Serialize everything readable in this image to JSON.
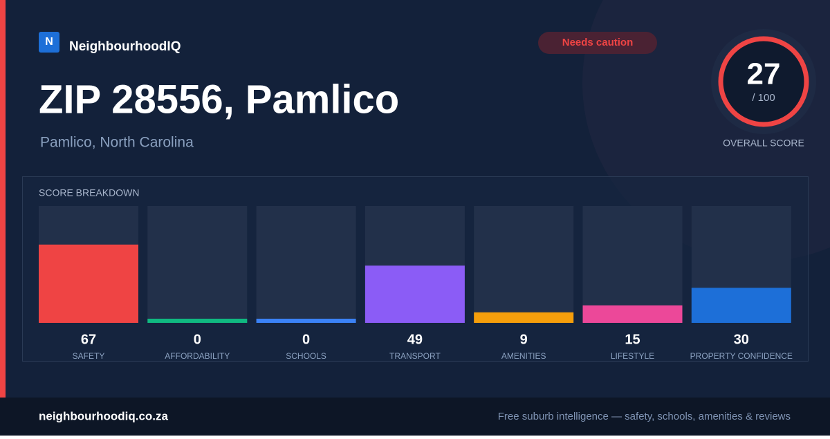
{
  "brand": "NeighbourhoodIQ",
  "logo_letter": "N",
  "badge": "Needs caution",
  "title": "ZIP 28556, Pamlico",
  "subtitle": "Pamlico, North Carolina",
  "score": {
    "value": 27,
    "max_label": "/ 100",
    "label": "OVERALL SCORE",
    "color": "#ef4444"
  },
  "chart_data": {
    "type": "bar",
    "title": "SCORE BREAKDOWN",
    "categories": [
      "SAFETY",
      "AFFORDABILITY",
      "SCHOOLS",
      "TRANSPORT",
      "AMENITIES",
      "LIFESTYLE",
      "PROPERTY CONFIDENCE"
    ],
    "values": [
      67,
      0,
      0,
      49,
      9,
      15,
      30
    ],
    "colors": [
      "#ef4444",
      "#10b981",
      "#3b82f6",
      "#8b5cf6",
      "#f59e0b",
      "#ec4899",
      "#1d6fd8"
    ],
    "ylim": [
      0,
      100
    ]
  },
  "footer": {
    "site": "neighbourhoodiq.co.za",
    "tagline": "Free suburb intelligence — safety, schools, amenities & reviews"
  }
}
